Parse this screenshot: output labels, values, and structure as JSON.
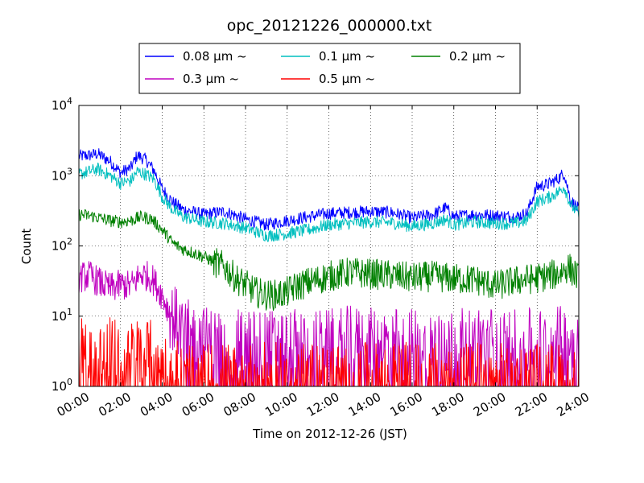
{
  "chart_data": {
    "type": "line",
    "title": "opc_20121226_000000.txt",
    "xlabel": "Time on 2012-12-26 (JST)",
    "ylabel": "Count",
    "y_scale": "log",
    "ylim": [
      1,
      10000
    ],
    "xlim_hours": [
      0,
      24
    ],
    "x_tick_labels": [
      "00:00",
      "02:00",
      "04:00",
      "06:00",
      "08:00",
      "10:00",
      "12:00",
      "14:00",
      "16:00",
      "18:00",
      "20:00",
      "22:00",
      "24:00"
    ],
    "y_tick_labels": [
      {
        "base": "10",
        "exp": "0"
      },
      {
        "base": "10",
        "exp": "1"
      },
      {
        "base": "10",
        "exp": "2"
      },
      {
        "base": "10",
        "exp": "3"
      },
      {
        "base": "10",
        "exp": "4"
      }
    ],
    "grid": true,
    "legend_position": "top-center",
    "series": [
      {
        "name": "0.08 μm ~",
        "color": "#0000ff",
        "x": [
          0,
          0.5,
          0.9,
          1.5,
          2.0,
          2.5,
          2.8,
          3.2,
          3.6,
          4.0,
          4.5,
          5.0,
          6.0,
          7.0,
          8.0,
          9.0,
          10.0,
          11.0,
          12.0,
          13.0,
          14.0,
          15.0,
          16.0,
          17.0,
          17.6,
          18.0,
          19.0,
          20.0,
          21.0,
          21.5,
          22.0,
          22.5,
          23.0,
          23.3,
          23.6,
          24.0
        ],
        "y": [
          1900,
          1950,
          2050,
          1600,
          1100,
          1300,
          1950,
          1700,
          1200,
          650,
          420,
          330,
          280,
          310,
          240,
          200,
          230,
          260,
          290,
          300,
          310,
          300,
          250,
          280,
          350,
          260,
          280,
          270,
          260,
          290,
          700,
          750,
          900,
          1100,
          450,
          330
        ]
      },
      {
        "name": "0.1 μm ~",
        "color": "#00bfbf",
        "x": [
          0,
          0.5,
          0.9,
          1.5,
          2.0,
          2.5,
          2.8,
          3.2,
          3.6,
          4.0,
          4.5,
          5.0,
          6.0,
          7.0,
          8.0,
          9.0,
          10.0,
          11.0,
          12.0,
          13.0,
          14.0,
          15.0,
          16.0,
          17.0,
          17.6,
          18.0,
          19.0,
          20.0,
          21.0,
          21.5,
          22.0,
          22.5,
          23.0,
          23.3,
          23.6,
          24.0
        ],
        "y": [
          1050,
          1150,
          1250,
          1000,
          780,
          850,
          1150,
          1050,
          900,
          500,
          330,
          260,
          220,
          210,
          180,
          140,
          150,
          170,
          200,
          210,
          220,
          215,
          190,
          210,
          240,
          200,
          220,
          210,
          210,
          230,
          430,
          480,
          580,
          700,
          390,
          280
        ]
      },
      {
        "name": "0.2 μm ~",
        "color": "#008000",
        "x": [
          0,
          0.5,
          1.0,
          1.5,
          2.0,
          2.5,
          3.0,
          3.5,
          4.0,
          4.5,
          5.0,
          6.0,
          7.0,
          7.5,
          8.0,
          8.5,
          9.0,
          9.5,
          10.0,
          10.5,
          11.0,
          12.0,
          13.0,
          14.0,
          15.0,
          16.0,
          17.0,
          18.0,
          19.0,
          20.0,
          21.0,
          22.0,
          23.0,
          23.5,
          24.0
        ],
        "y": [
          280,
          270,
          250,
          230,
          220,
          230,
          260,
          240,
          170,
          110,
          90,
          70,
          50,
          35,
          28,
          22,
          20,
          20,
          22,
          27,
          30,
          37,
          42,
          40,
          38,
          35,
          37,
          34,
          33,
          27,
          32,
          35,
          40,
          50,
          35
        ]
      },
      {
        "name": "0.3 μm ~",
        "color": "#bf00bf",
        "x": [
          0,
          0.5,
          1.0,
          1.5,
          2.0,
          2.5,
          3.0,
          3.5,
          4.0,
          4.3,
          4.7,
          5.0,
          5.5,
          6.0,
          7.0,
          8.0,
          9.0,
          10.0,
          11.0,
          12.0,
          13.0,
          14.0,
          15.0,
          16.0,
          17.0,
          18.0,
          19.0,
          20.0,
          21.0,
          22.0,
          23.0,
          24.0
        ],
        "y": [
          35,
          38,
          30,
          25,
          28,
          27,
          40,
          35,
          20,
          12,
          8,
          6,
          5,
          4.5,
          4,
          4,
          4,
          4,
          4,
          4,
          4.5,
          4.2,
          4.2,
          4.2,
          4.2,
          4.2,
          4.2,
          4.5,
          4.2,
          4.2,
          4.5,
          4.5
        ]
      },
      {
        "name": "0.5 μm ~",
        "color": "#ff0000",
        "x": [
          0,
          0.5,
          1.0,
          1.5,
          2.0,
          2.5,
          3.0,
          3.5,
          4.0,
          4.5,
          5.0,
          6.0,
          8.0,
          10.0,
          12.0,
          14.0,
          16.0,
          18.0,
          20.0,
          22.0,
          24.0
        ],
        "y": [
          3,
          3,
          2.5,
          2.8,
          2.5,
          2.8,
          2.8,
          2.5,
          2,
          1.6,
          1.3,
          1.2,
          1.2,
          1.2,
          1.2,
          1.2,
          1.2,
          1.2,
          1.2,
          1.2,
          1.2
        ]
      }
    ]
  }
}
